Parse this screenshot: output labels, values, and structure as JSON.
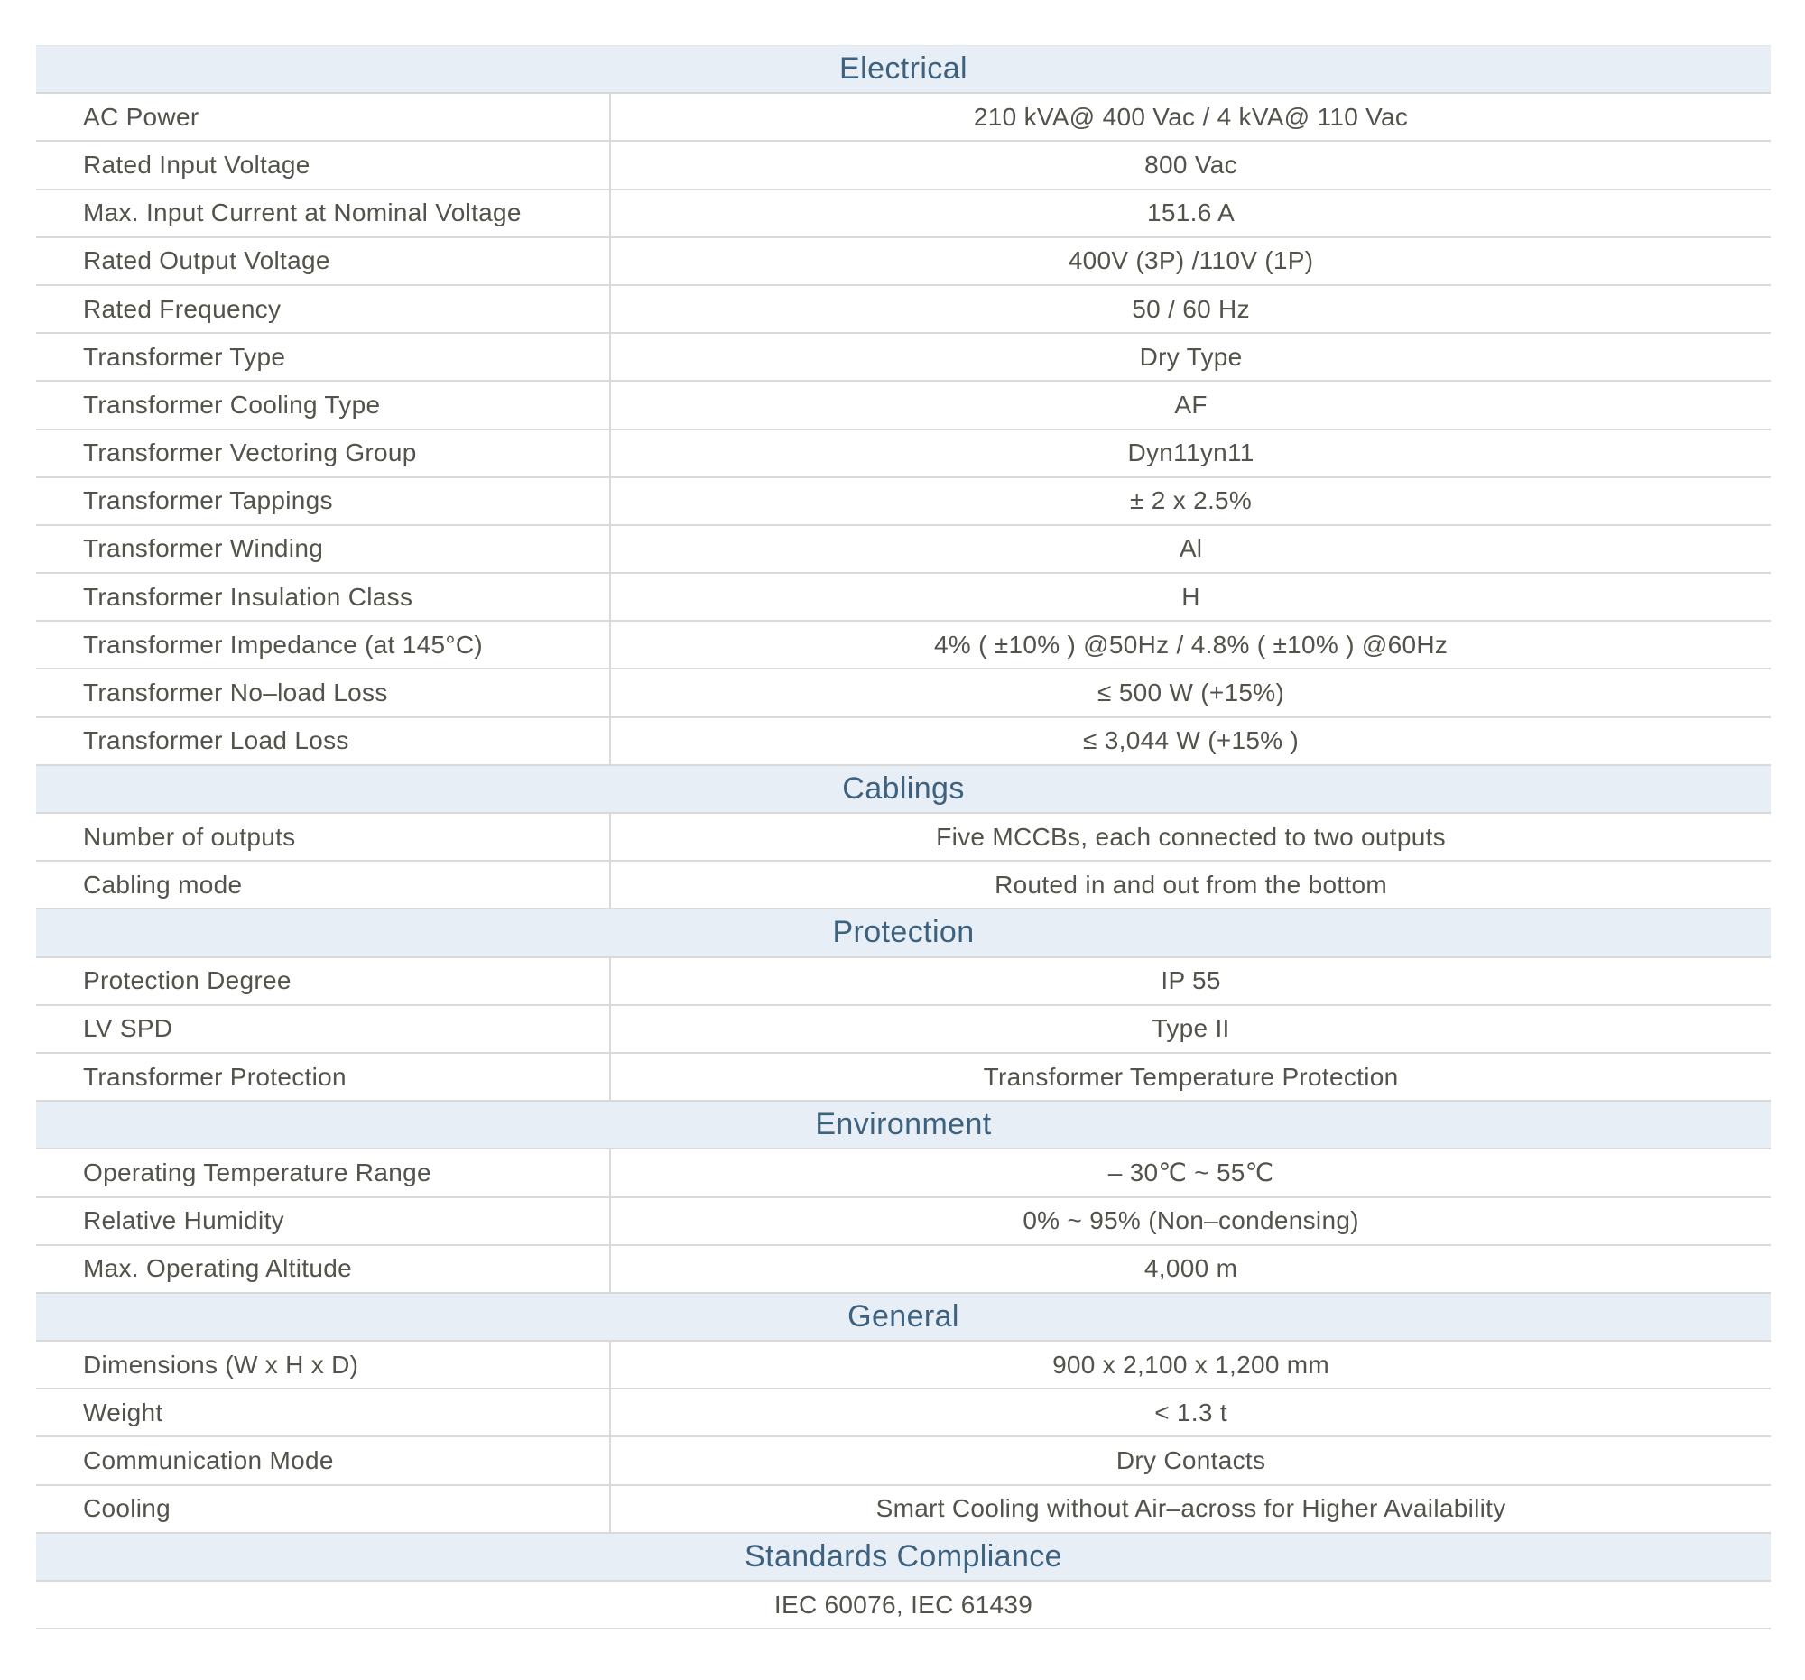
{
  "colors": {
    "section_header_background": "#e8eef6",
    "section_header_text": "#3d6280",
    "body_text": "#53534b",
    "grid_line": "#d9d9d9"
  },
  "table": {
    "sections": [
      {
        "title": "Electrical",
        "rows": [
          {
            "label": "AC Power",
            "value": "210 kVA@ 400 Vac / 4 kVA@ 110 Vac"
          },
          {
            "label": "Rated Input Voltage",
            "value": "800 Vac"
          },
          {
            "label": "Max. Input Current at Nominal Voltage",
            "value": "151.6 A"
          },
          {
            "label": "Rated Output Voltage",
            "value": "400V (3P) /110V (1P)"
          },
          {
            "label": "Rated Frequency",
            "value": "50 / 60 Hz"
          },
          {
            "label": "Transformer Type",
            "value": "Dry Type"
          },
          {
            "label": "Transformer Cooling Type",
            "value": "AF"
          },
          {
            "label": "Transformer Vectoring Group",
            "value": "Dyn11yn11"
          },
          {
            "label": "Transformer Tappings",
            "value": "± 2 x 2.5%"
          },
          {
            "label": "Transformer Winding",
            "value": "Al"
          },
          {
            "label": "Transformer Insulation Class",
            "value": "H"
          },
          {
            "label": "Transformer Impedance (at 145°C)",
            "value": "4% ( ±10% ) @50Hz / 4.8% ( ±10% ) @60Hz"
          },
          {
            "label": "Transformer No–load Loss",
            "value": "≤ 500 W (+15%)"
          },
          {
            "label": "Transformer Load Loss",
            "value": "≤ 3,044 W (+15% )"
          }
        ]
      },
      {
        "title": "Cablings",
        "rows": [
          {
            "label": "Number of outputs",
            "value": "Five MCCBs, each connected to two outputs"
          },
          {
            "label": "Cabling mode",
            "value": "Routed in and out from the bottom"
          }
        ]
      },
      {
        "title": "Protection",
        "rows": [
          {
            "label": "Protection Degree",
            "value": "IP 55"
          },
          {
            "label": "LV SPD",
            "value": "Type II"
          },
          {
            "label": "Transformer Protection",
            "value": "Transformer Temperature Protection"
          }
        ]
      },
      {
        "title": "Environment",
        "rows": [
          {
            "label": "Operating Temperature Range",
            "value": "– 30℃ ~ 55℃"
          },
          {
            "label": "Relative Humidity",
            "value": "0% ~ 95% (Non–condensing)"
          },
          {
            "label": "Max. Operating Altitude",
            "value": "4,000 m"
          }
        ]
      },
      {
        "title": "General",
        "rows": [
          {
            "label": "Dimensions (W x H x D)",
            "value": "900 x 2,100 x 1,200 mm"
          },
          {
            "label": "Weight",
            "value": "< 1.3 t"
          },
          {
            "label": "Communication Mode",
            "value": "Dry Contacts"
          },
          {
            "label": "Cooling",
            "value": "Smart Cooling without Air–across for Higher Availability"
          }
        ]
      },
      {
        "title": "Standards Compliance",
        "rows": [
          {
            "label": null,
            "value": "IEC 60076, IEC 61439"
          }
        ]
      }
    ]
  }
}
